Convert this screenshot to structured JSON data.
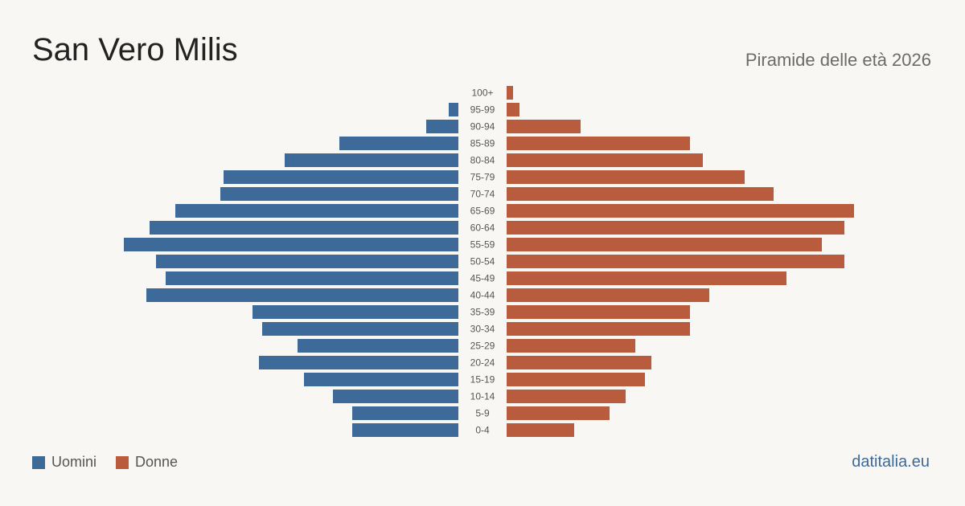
{
  "header": {
    "title": "San Vero Milis",
    "subtitle": "Piramide delle età 2026"
  },
  "legend": {
    "men": "Uomini",
    "women": "Donne"
  },
  "footer": {
    "source": "datitalia.eu"
  },
  "colors": {
    "men": "#3d6a99",
    "women": "#b95c3e",
    "background": "#f9f7f3",
    "age_label": "#555555"
  },
  "chart_data": {
    "type": "bar",
    "orientation": "horizontal",
    "layout": "population-pyramid",
    "title": "San Vero Milis",
    "subtitle": "Piramide delle età 2026",
    "categories": [
      "100+",
      "95-99",
      "90-94",
      "85-89",
      "80-84",
      "75-79",
      "70-74",
      "65-69",
      "60-64",
      "55-59",
      "50-54",
      "45-49",
      "40-44",
      "35-39",
      "30-34",
      "25-29",
      "20-24",
      "15-19",
      "10-14",
      "5-9",
      "0-4"
    ],
    "series": [
      {
        "name": "Uomini",
        "side": "left",
        "values": [
          0,
          3,
          10,
          37,
          54,
          73,
          74,
          88,
          96,
          104,
          94,
          91,
          97,
          64,
          61,
          50,
          62,
          48,
          39,
          33,
          33
        ]
      },
      {
        "name": "Donne",
        "side": "right",
        "values": [
          2,
          4,
          23,
          57,
          61,
          74,
          83,
          108,
          105,
          98,
          105,
          87,
          63,
          57,
          57,
          40,
          45,
          43,
          37,
          32,
          21
        ]
      }
    ],
    "value_axis_visible": false,
    "grid": false,
    "legend_position": "bottom-left"
  }
}
